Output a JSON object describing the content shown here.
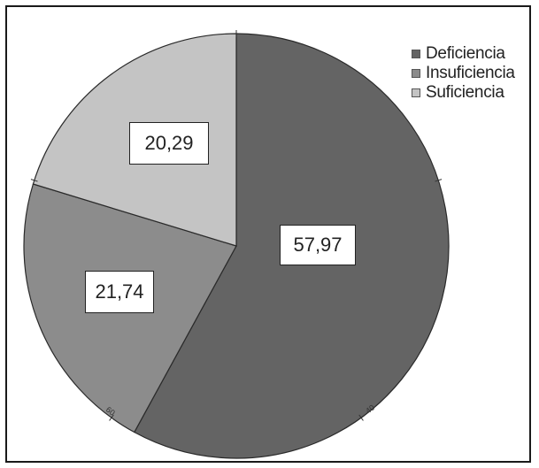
{
  "chart_data": {
    "type": "pie",
    "title": "",
    "series": [
      {
        "name": "Deficiencia",
        "value": 57.97,
        "label": "57,97",
        "color": "#646464"
      },
      {
        "name": "Insuficiencia",
        "value": 21.74,
        "label": "21,74",
        "color": "#8c8c8c"
      },
      {
        "name": "Suficiencia",
        "value": 20.29,
        "label": "20,29",
        "color": "#c4c4c4"
      }
    ],
    "tick_labels": [
      "40",
      "60"
    ],
    "legend_position": "top-right"
  }
}
